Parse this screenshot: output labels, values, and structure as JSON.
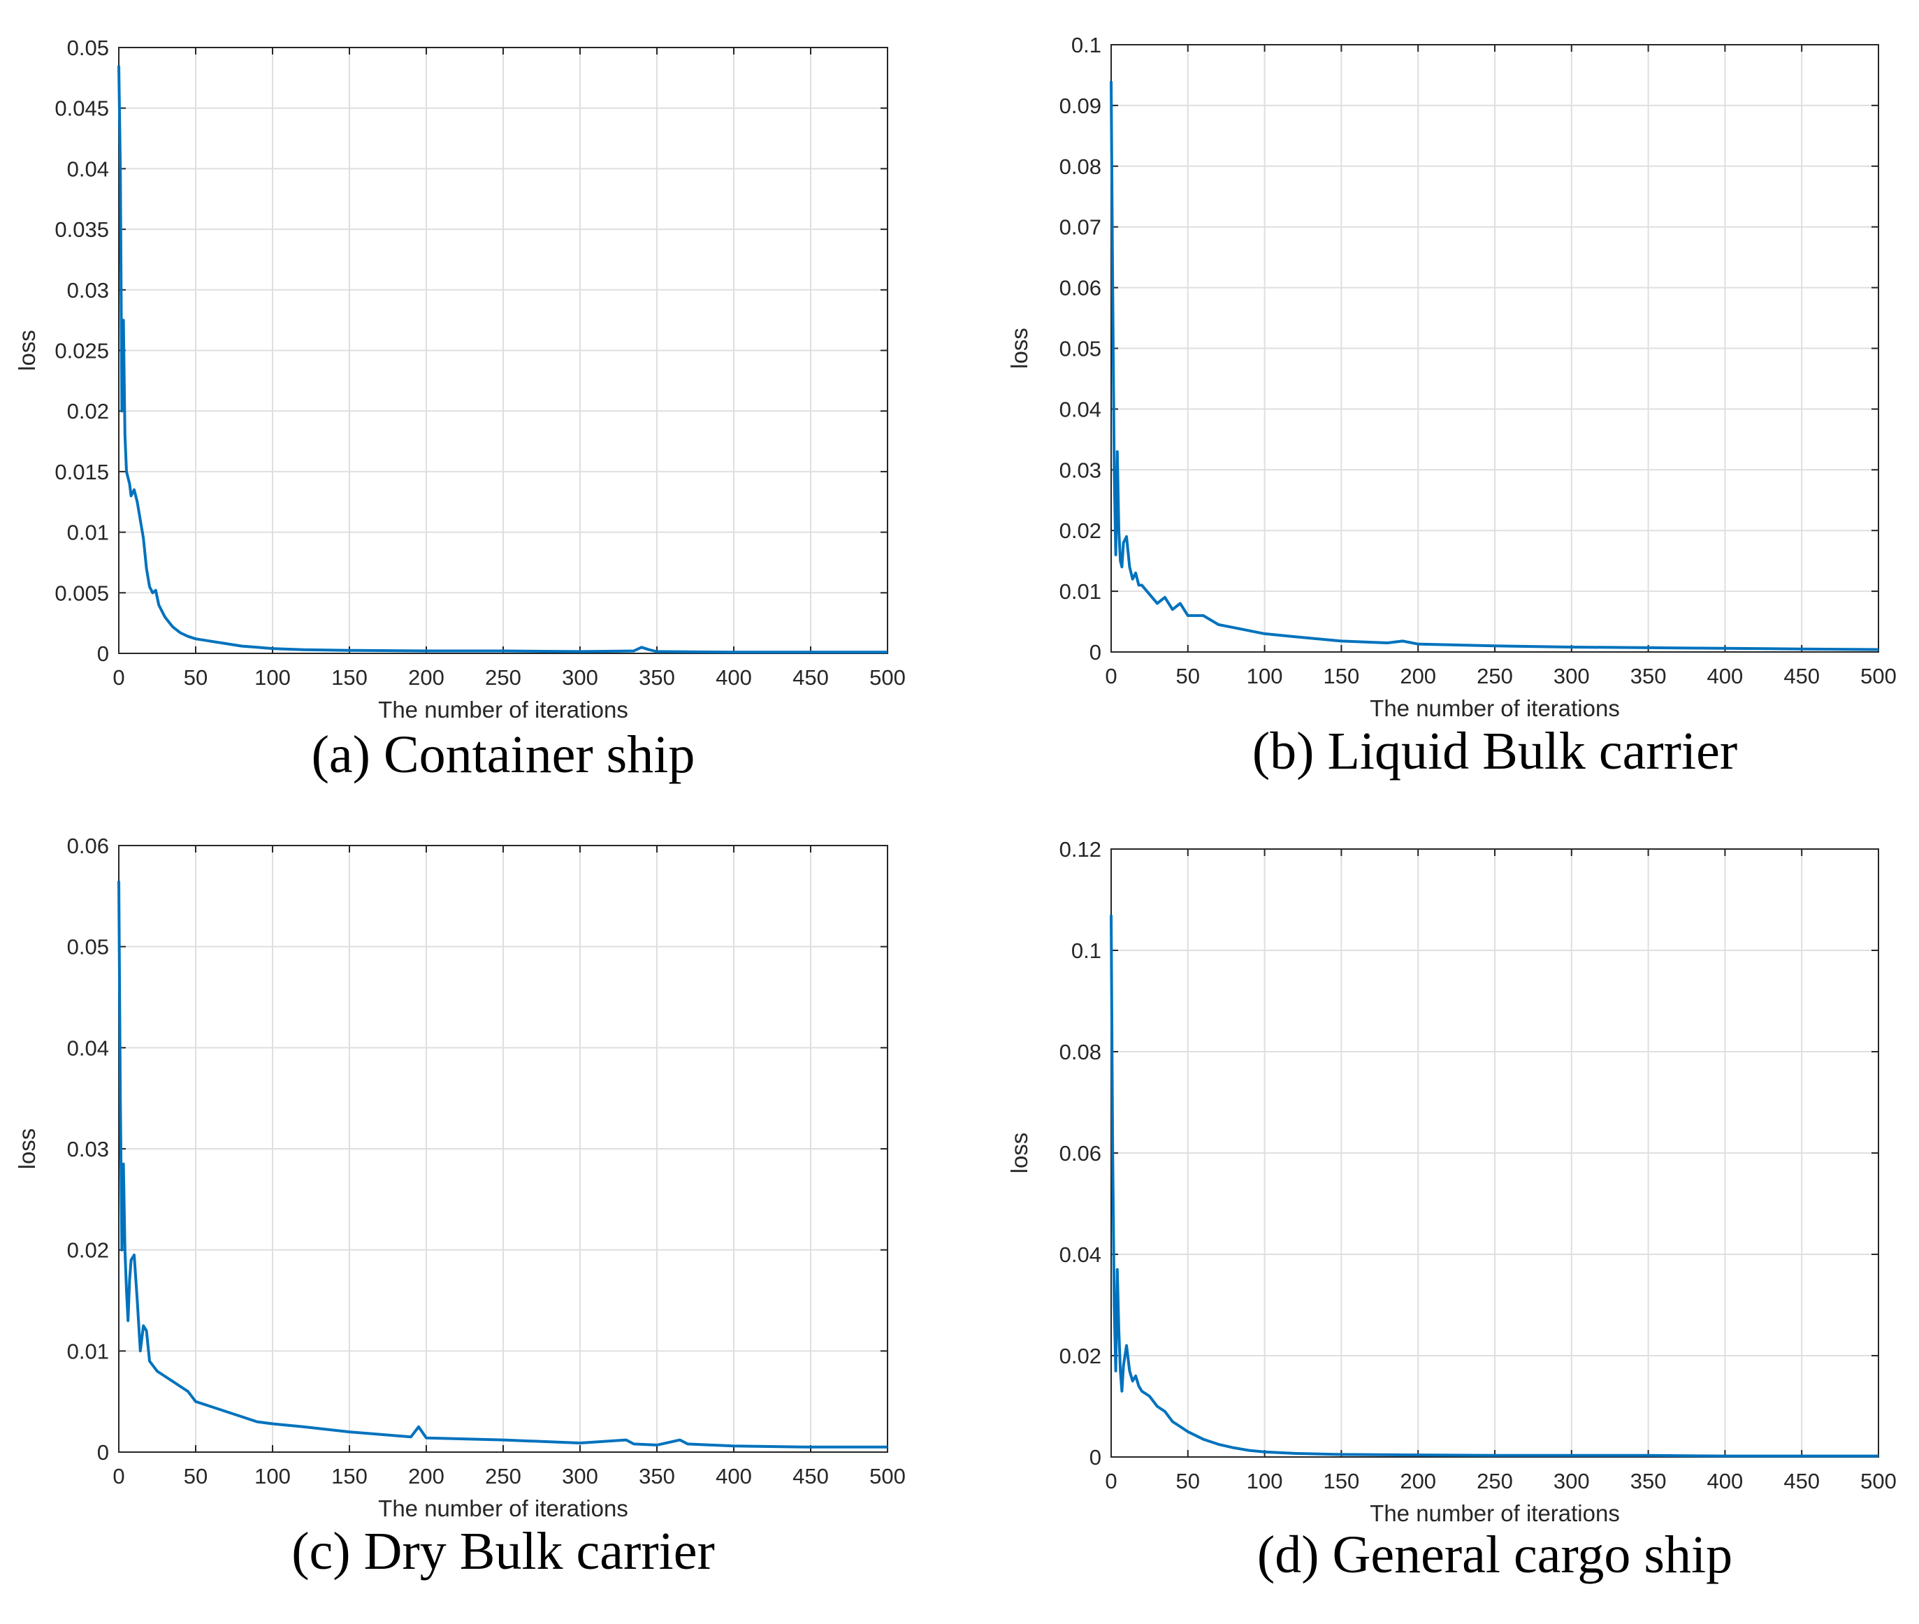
{
  "colors": {
    "line": "#0072BD",
    "grid": "#dfdfdf",
    "axis": "#262626",
    "text": "#262626",
    "caption": "#000000"
  },
  "chart_data": [
    {
      "type": "line",
      "caption": "(a) Container ship",
      "xlabel": "The number of iterations",
      "ylabel": "loss",
      "xlim": [
        0,
        500
      ],
      "ylim": [
        0,
        0.05
      ],
      "xticks": [
        "0",
        "50",
        "100",
        "150",
        "200",
        "250",
        "300",
        "350",
        "400",
        "450",
        "500"
      ],
      "yticks": [
        "0",
        "0.005",
        "0.01",
        "0.015",
        "0.02",
        "0.025",
        "0.03",
        "0.035",
        "0.04",
        "0.045",
        "0.05"
      ],
      "grid": true,
      "series": [
        {
          "name": "loss",
          "x": [
            0,
            1,
            2,
            3,
            4,
            5,
            6,
            7,
            8,
            10,
            12,
            14,
            16,
            18,
            20,
            22,
            24,
            26,
            28,
            30,
            35,
            40,
            45,
            50,
            60,
            70,
            80,
            90,
            100,
            120,
            150,
            200,
            250,
            300,
            335,
            340,
            345,
            350,
            400,
            450,
            500
          ],
          "y": [
            0.0485,
            0.04,
            0.02,
            0.0275,
            0.018,
            0.015,
            0.0145,
            0.014,
            0.013,
            0.0135,
            0.0125,
            0.011,
            0.0095,
            0.007,
            0.0055,
            0.005,
            0.0052,
            0.004,
            0.0035,
            0.003,
            0.0022,
            0.0017,
            0.0014,
            0.0012,
            0.001,
            0.0008,
            0.0006,
            0.0005,
            0.0004,
            0.0003,
            0.00025,
            0.0002,
            0.0002,
            0.00015,
            0.0002,
            0.0005,
            0.0003,
            0.00015,
            0.0001,
            0.0001,
            0.0001
          ]
        }
      ]
    },
    {
      "type": "line",
      "caption": "(b) Liquid Bulk carrier",
      "xlabel": "The number of iterations",
      "ylabel": "loss",
      "xlim": [
        0,
        500
      ],
      "ylim": [
        0,
        0.1
      ],
      "xticks": [
        "0",
        "50",
        "100",
        "150",
        "200",
        "250",
        "300",
        "350",
        "400",
        "450",
        "500"
      ],
      "yticks": [
        "0",
        "0.01",
        "0.02",
        "0.03",
        "0.04",
        "0.05",
        "0.06",
        "0.07",
        "0.08",
        "0.09",
        "0.1"
      ],
      "grid": true,
      "series": [
        {
          "name": "loss",
          "x": [
            0,
            1,
            2,
            3,
            4,
            5,
            6,
            7,
            8,
            10,
            12,
            14,
            16,
            18,
            20,
            25,
            30,
            35,
            40,
            45,
            50,
            60,
            70,
            80,
            100,
            120,
            150,
            180,
            190,
            200,
            250,
            300,
            350,
            400,
            450,
            500
          ],
          "y": [
            0.094,
            0.06,
            0.03,
            0.016,
            0.033,
            0.02,
            0.015,
            0.014,
            0.018,
            0.019,
            0.014,
            0.012,
            0.013,
            0.011,
            0.011,
            0.0095,
            0.008,
            0.009,
            0.007,
            0.008,
            0.006,
            0.006,
            0.0045,
            0.004,
            0.003,
            0.0025,
            0.0018,
            0.0015,
            0.0018,
            0.0013,
            0.001,
            0.0008,
            0.0007,
            0.0006,
            0.0005,
            0.0004
          ]
        }
      ]
    },
    {
      "type": "line",
      "caption": "(c) Dry Bulk carrier",
      "xlabel": "The number of iterations",
      "ylabel": "loss",
      "xlim": [
        0,
        500
      ],
      "ylim": [
        0,
        0.06
      ],
      "xticks": [
        "0",
        "50",
        "100",
        "150",
        "200",
        "250",
        "300",
        "350",
        "400",
        "450",
        "500"
      ],
      "yticks": [
        "0",
        "0.01",
        "0.02",
        "0.03",
        "0.04",
        "0.05",
        "0.06"
      ],
      "grid": true,
      "series": [
        {
          "name": "loss",
          "x": [
            0,
            1,
            2,
            3,
            4,
            5,
            6,
            7,
            8,
            10,
            12,
            14,
            16,
            18,
            20,
            25,
            30,
            35,
            40,
            45,
            50,
            60,
            70,
            80,
            90,
            100,
            120,
            150,
            190,
            195,
            200,
            250,
            300,
            330,
            335,
            350,
            365,
            370,
            400,
            450,
            500
          ],
          "y": [
            0.0565,
            0.035,
            0.02,
            0.0285,
            0.02,
            0.016,
            0.013,
            0.017,
            0.019,
            0.0195,
            0.015,
            0.01,
            0.0125,
            0.012,
            0.009,
            0.008,
            0.0075,
            0.007,
            0.0065,
            0.006,
            0.005,
            0.0045,
            0.004,
            0.0035,
            0.003,
            0.0028,
            0.0025,
            0.002,
            0.0015,
            0.0025,
            0.0014,
            0.0012,
            0.0009,
            0.0012,
            0.0008,
            0.0007,
            0.0012,
            0.0008,
            0.0006,
            0.0005,
            0.0005
          ]
        }
      ]
    },
    {
      "type": "line",
      "caption": "(d) General cargo ship",
      "xlabel": "The number of iterations",
      "ylabel": "loss",
      "xlim": [
        0,
        500
      ],
      "ylim": [
        0,
        0.12
      ],
      "xticks": [
        "0",
        "50",
        "100",
        "150",
        "200",
        "250",
        "300",
        "350",
        "400",
        "450",
        "500"
      ],
      "yticks": [
        "0",
        "0.02",
        "0.04",
        "0.06",
        "0.08",
        "0.1",
        "0.12"
      ],
      "grid": true,
      "series": [
        {
          "name": "loss",
          "x": [
            0,
            1,
            2,
            3,
            4,
            5,
            6,
            7,
            8,
            10,
            12,
            14,
            16,
            18,
            20,
            25,
            30,
            35,
            40,
            45,
            50,
            60,
            70,
            80,
            90,
            100,
            120,
            150,
            200,
            250,
            300,
            350,
            400,
            450,
            500
          ],
          "y": [
            0.107,
            0.06,
            0.03,
            0.017,
            0.037,
            0.025,
            0.017,
            0.013,
            0.018,
            0.022,
            0.017,
            0.015,
            0.016,
            0.014,
            0.013,
            0.012,
            0.01,
            0.009,
            0.007,
            0.006,
            0.005,
            0.0035,
            0.0025,
            0.0018,
            0.0013,
            0.001,
            0.0007,
            0.0005,
            0.0004,
            0.0003,
            0.0003,
            0.0003,
            0.0002,
            0.0002,
            0.0002
          ]
        }
      ]
    }
  ]
}
